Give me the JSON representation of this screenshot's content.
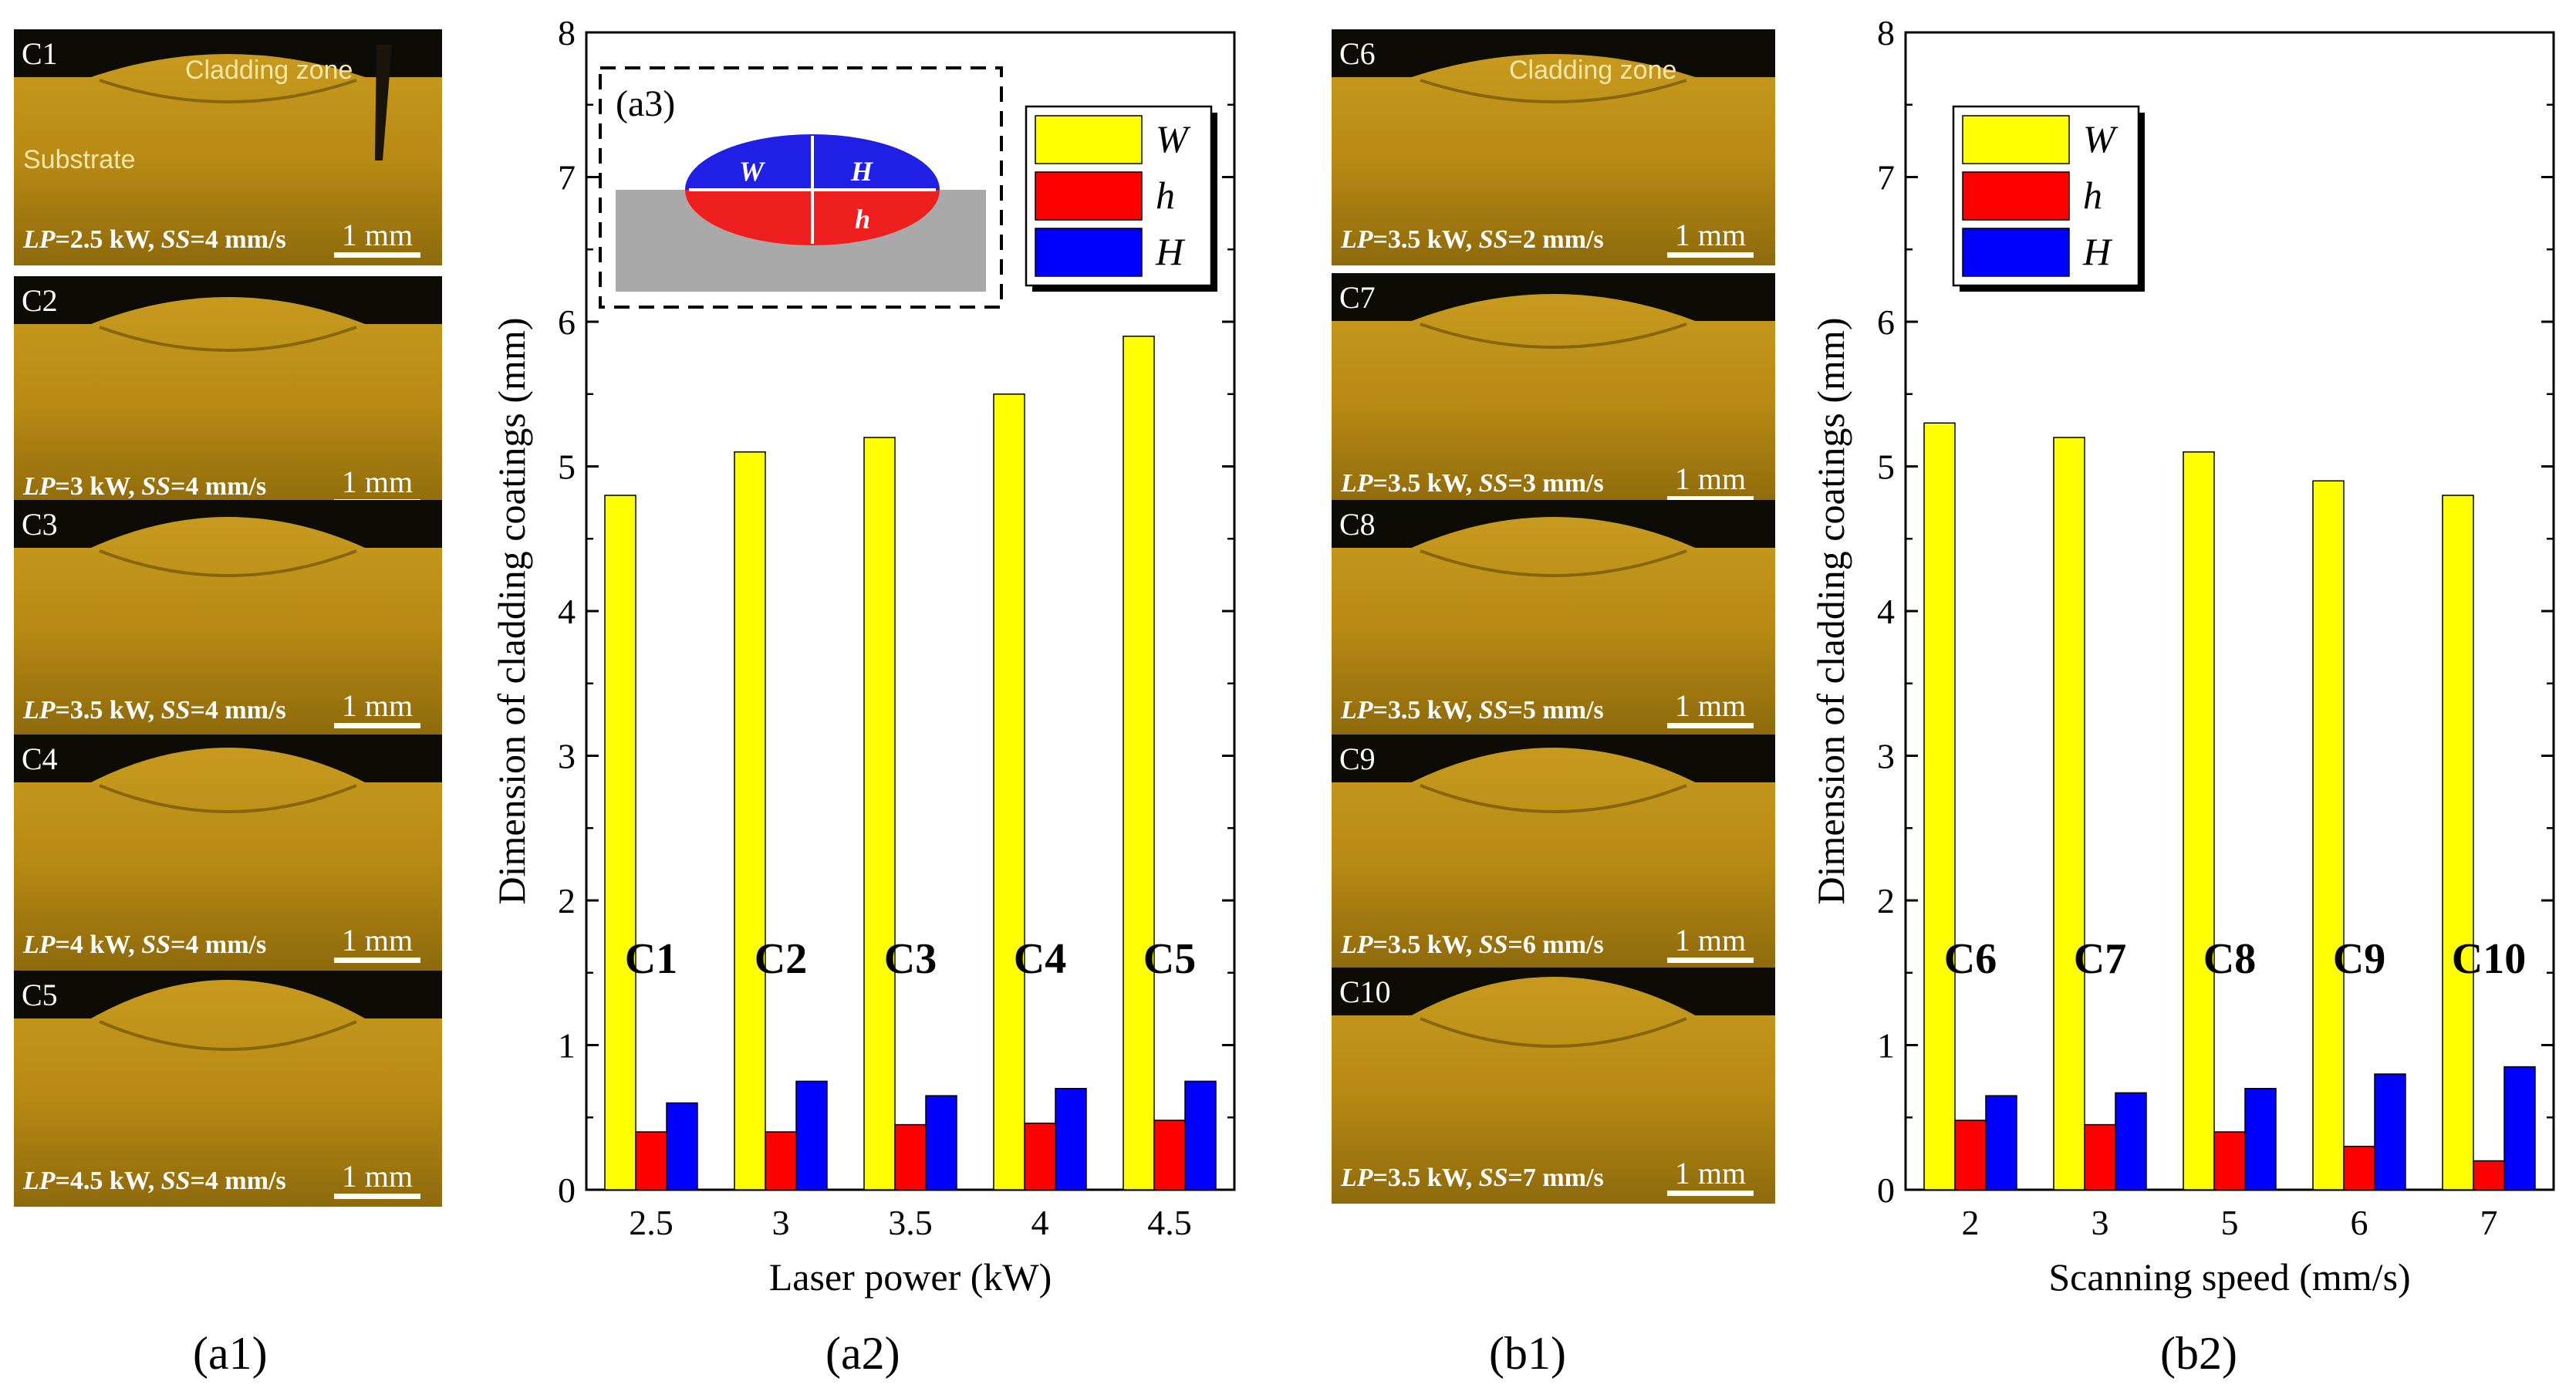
{
  "captions": {
    "a1": "(a1)",
    "a2": "(a2)",
    "b1": "(b1)",
    "b2": "(b2)"
  },
  "panels_a": [
    {
      "id": "C1",
      "condition": "LP=2.5 kW, SS=4 mm/s",
      "lp": "2.5 kW",
      "ss": "4 mm/s",
      "zone_label": "Cladding zone",
      "substrate_label": "Substrate",
      "scale": "1 mm"
    },
    {
      "id": "C2",
      "condition": "LP=3 kW, SS=4 mm/s",
      "lp": "3 kW",
      "ss": "4 mm/s",
      "scale": "1 mm"
    },
    {
      "id": "C3",
      "condition": "LP=3.5 kW, SS=4 mm/s",
      "lp": "3.5 kW",
      "ss": "4 mm/s",
      "scale": "1 mm"
    },
    {
      "id": "C4",
      "condition": "LP=4 kW, SS=4 mm/s",
      "lp": "4 kW",
      "ss": "4 mm/s",
      "scale": "1 mm"
    },
    {
      "id": "C5",
      "condition": "LP=4.5 kW, SS=4 mm/s",
      "lp": "4.5 kW",
      "ss": "4 mm/s",
      "scale": "1 mm"
    }
  ],
  "panels_b": [
    {
      "id": "C6",
      "condition": "LP=3.5 kW, SS=2 mm/s",
      "lp": "3.5 kW",
      "ss": "2 mm/s",
      "zone_label": "Cladding zone",
      "scale": "1 mm"
    },
    {
      "id": "C7",
      "condition": "LP=3.5 kW, SS=3 mm/s",
      "lp": "3.5 kW",
      "ss": "3 mm/s",
      "scale": "1 mm"
    },
    {
      "id": "C8",
      "condition": "LP=3.5 kW, SS=5 mm/s",
      "lp": "3.5 kW",
      "ss": "5 mm/s",
      "scale": "1 mm"
    },
    {
      "id": "C9",
      "condition": "LP=3.5 kW, SS=6 mm/s",
      "lp": "3.5 kW",
      "ss": "6 mm/s",
      "scale": "1 mm"
    },
    {
      "id": "C10",
      "condition": "LP=3.5 kW, SS=7 mm/s",
      "lp": "3.5 kW",
      "ss": "7 mm/s",
      "scale": "1 mm"
    }
  ],
  "inset": {
    "label": "(a3)",
    "W": "W",
    "H": "H",
    "h": "h"
  },
  "colors": {
    "W": "#ffff00",
    "h": "#ff0000",
    "H": "#0000ff"
  },
  "chart_data": [
    {
      "type": "bar",
      "xlabel": "Laser power (kW)",
      "ylabel": "Dimension of cladding coatings (mm)",
      "ylim": [
        0,
        8
      ],
      "yticks": [
        0,
        1,
        2,
        3,
        4,
        5,
        6,
        7,
        8
      ],
      "categories": [
        "2.5",
        "3",
        "3.5",
        "4",
        "4.5"
      ],
      "group_labels": [
        "C1",
        "C2",
        "C3",
        "C4",
        "C5"
      ],
      "legend_position": "top-right",
      "series": [
        {
          "name": "W",
          "values": [
            4.8,
            5.1,
            5.2,
            5.5,
            5.9
          ]
        },
        {
          "name": "h",
          "values": [
            0.4,
            0.4,
            0.45,
            0.46,
            0.48
          ]
        },
        {
          "name": "H",
          "values": [
            0.6,
            0.75,
            0.65,
            0.7,
            0.75
          ]
        }
      ]
    },
    {
      "type": "bar",
      "xlabel": "Scanning speed (mm/s)",
      "ylabel": "Dimension of cladding coatings (mm)",
      "ylim": [
        0,
        8
      ],
      "yticks": [
        0,
        1,
        2,
        3,
        4,
        5,
        6,
        7,
        8
      ],
      "categories": [
        "2",
        "3",
        "5",
        "6",
        "7"
      ],
      "group_labels": [
        "C6",
        "C7",
        "C8",
        "C9",
        "C10"
      ],
      "legend_position": "top-left",
      "series": [
        {
          "name": "W",
          "values": [
            5.3,
            5.2,
            5.1,
            4.9,
            4.8
          ]
        },
        {
          "name": "h",
          "values": [
            0.48,
            0.45,
            0.4,
            0.3,
            0.2
          ]
        },
        {
          "name": "H",
          "values": [
            0.65,
            0.67,
            0.7,
            0.8,
            0.85
          ]
        }
      ]
    }
  ]
}
